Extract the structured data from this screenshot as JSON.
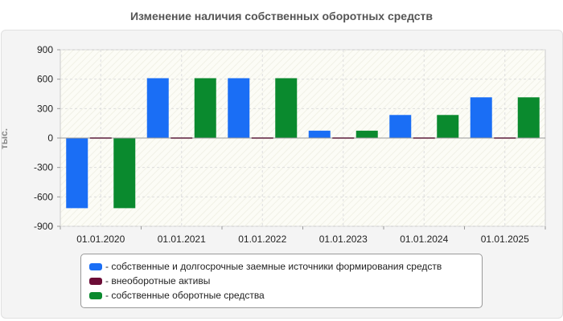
{
  "chart_data": {
    "type": "bar",
    "title": "Изменение наличия собственных оборотных средств",
    "ylabel": "тыс.",
    "xlabel": "",
    "ylim": [
      -900,
      900
    ],
    "yticks": [
      900,
      600,
      300,
      0,
      -300,
      -600,
      -900
    ],
    "categories": [
      "01.01.2020",
      "01.01.2021",
      "01.01.2022",
      "01.01.2023",
      "01.01.2024",
      "01.01.2025"
    ],
    "series": [
      {
        "name": "собственные и долгосрочные заемные источники формирования средств",
        "color": "#1a6ef5",
        "values": [
          -715,
          610,
          610,
          75,
          235,
          415
        ]
      },
      {
        "name": "внеоборотные активы",
        "color": "#6b0c36",
        "values": [
          8,
          8,
          8,
          8,
          8,
          8
        ]
      },
      {
        "name": "собственные оборотные средства",
        "color": "#0a8a2e",
        "values": [
          -715,
          610,
          610,
          75,
          235,
          415
        ]
      }
    ],
    "legend_labels": [
      "- собственные и долгосрочные заемные источники формирования средств",
      "- внеоборотные активы",
      "- собственные оборотные средства"
    ]
  }
}
